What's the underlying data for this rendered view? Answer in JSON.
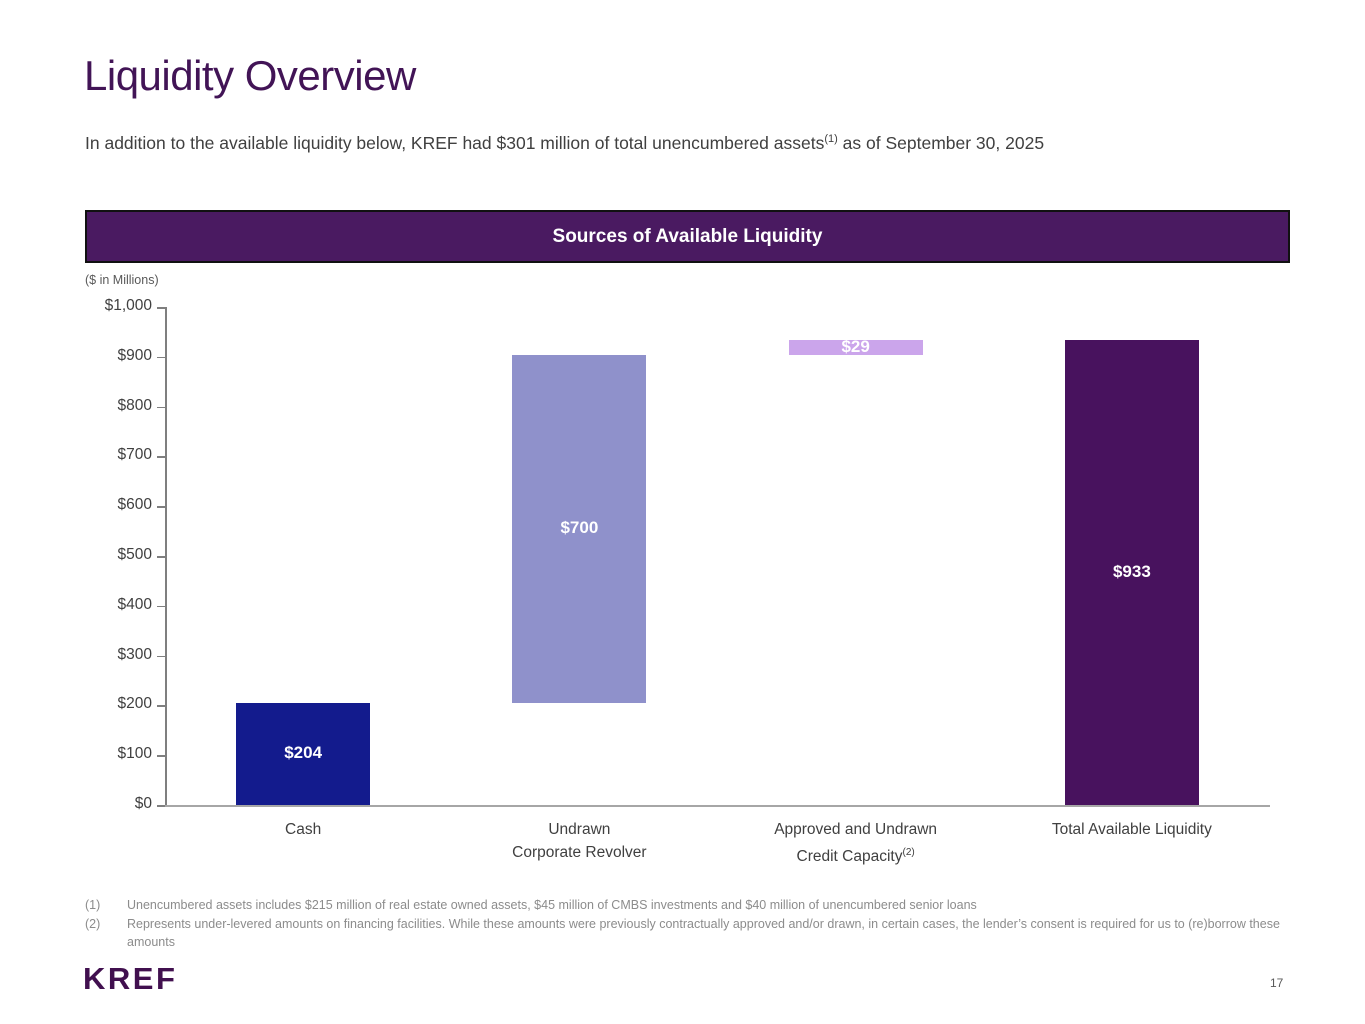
{
  "slide": {
    "title": "Liquidity Overview",
    "subtitle": {
      "text_before": "In addition to the available liquidity below, KREF had $301 million of total unencumbered assets",
      "superscript": "(1)",
      "text_after": " as of September 30, 2025"
    },
    "banner_title": "Sources of Available Liquidity",
    "logo_text": "KREF",
    "page_number": "17"
  },
  "chart_data": {
    "type": "bar",
    "subtype": "floating-waterfall",
    "title": "Sources of Available Liquidity",
    "units_label": "($ in Millions)",
    "xlabel": "",
    "ylabel": "$ in Millions",
    "ylim": [
      0,
      1000
    ],
    "ytick_step": 100,
    "grid": false,
    "legend": false,
    "categories": [
      {
        "label_lines": [
          "Cash"
        ],
        "superscript": "",
        "start": 0,
        "end": 204,
        "value": 204,
        "data_label": "$204",
        "color": "#131B8D"
      },
      {
        "label_lines": [
          "Undrawn",
          "Corporate Revolver"
        ],
        "superscript": "",
        "start": 204,
        "end": 904,
        "value": 700,
        "data_label": "$700",
        "color": "#8F91CB"
      },
      {
        "label_lines": [
          "Approved and Undrawn",
          "Credit Capacity"
        ],
        "superscript": "(2)",
        "start": 904,
        "end": 933,
        "value": 29,
        "data_label": "$29",
        "color": "#CBA5EB"
      },
      {
        "label_lines": [
          "Total Available Liquidity"
        ],
        "superscript": "",
        "start": 0,
        "end": 933,
        "value": 933,
        "data_label": "$933",
        "color": "#48125E"
      }
    ]
  },
  "footnotes": [
    {
      "marker": "(1)",
      "text": "Unencumbered assets includes $215 million of real estate owned assets, $45 million of CMBS investments and $40 million of unencumbered senior loans"
    },
    {
      "marker": "(2)",
      "text": "Represents under-levered amounts on financing facilities. While these amounts were previously contractually approved and/or drawn, in certain cases, the lender’s consent is required for us to (re)borrow these amounts"
    }
  ],
  "colors": {
    "background": "#FFFFFF",
    "title": "#421456",
    "banner_bg": "#4A1A61",
    "banner_border": "#111111",
    "banner_text": "#FFFFFF",
    "bar_label_text": "#FFFFFF",
    "axis_line": "#7F7F7F",
    "baseline": "#A6A6A6",
    "tick_label": "#404040",
    "body_text": "#404040",
    "units_text": "#595959",
    "footnote_text": "#8C8C8C",
    "logo": "#41104F",
    "page_number": "#595959"
  }
}
